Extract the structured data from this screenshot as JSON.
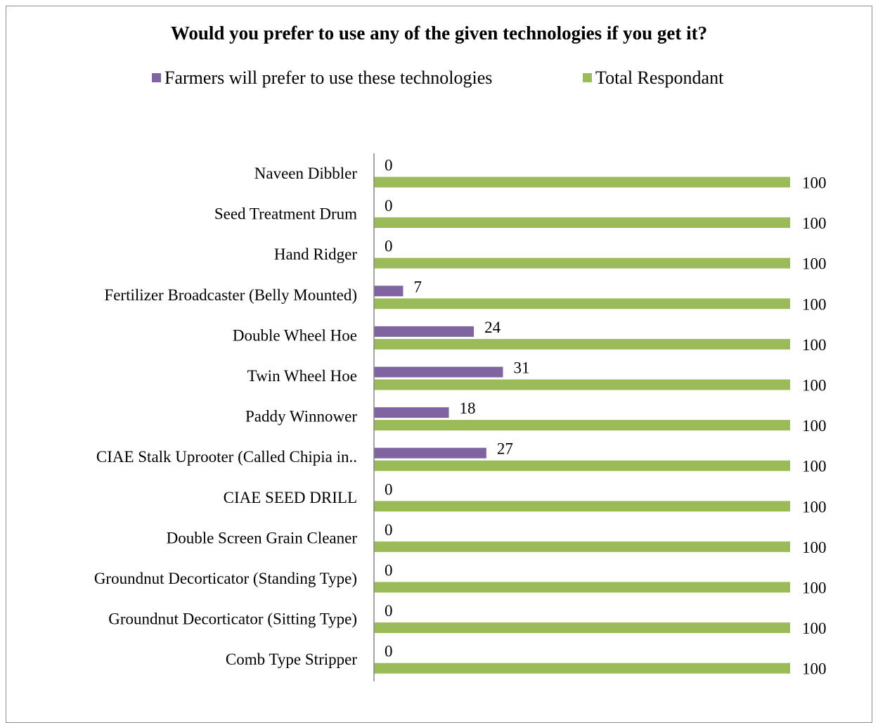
{
  "chart_data": {
    "type": "bar",
    "orientation": "horizontal",
    "title": "Would you prefer to use any of the given technologies if you get it?",
    "categories": [
      "Naveen Dibbler",
      "Seed Treatment Drum",
      "Hand Ridger",
      "Fertilizer Broadcaster (Belly Mounted)",
      "Double Wheel Hoe",
      "Twin Wheel Hoe",
      "Paddy Winnower",
      "CIAE Stalk Uprooter (Called Chipia in..",
      "CIAE SEED DRILL",
      "Double Screen Grain Cleaner",
      "Groundnut Decorticator (Standing Type)",
      "Groundnut Decorticator (Sitting Type)",
      "Comb Type Stripper"
    ],
    "series": [
      {
        "name": "Farmers will prefer to use these technologies",
        "color": "#8064a2",
        "values": [
          0,
          0,
          0,
          7,
          24,
          31,
          18,
          27,
          0,
          0,
          0,
          0,
          0
        ]
      },
      {
        "name": "Total Respondant",
        "color": "#9bbb59",
        "values": [
          100,
          100,
          100,
          100,
          100,
          100,
          100,
          100,
          100,
          100,
          100,
          100,
          100
        ]
      }
    ],
    "xlim": [
      0,
      100
    ],
    "grid": false,
    "legend": "top"
  }
}
